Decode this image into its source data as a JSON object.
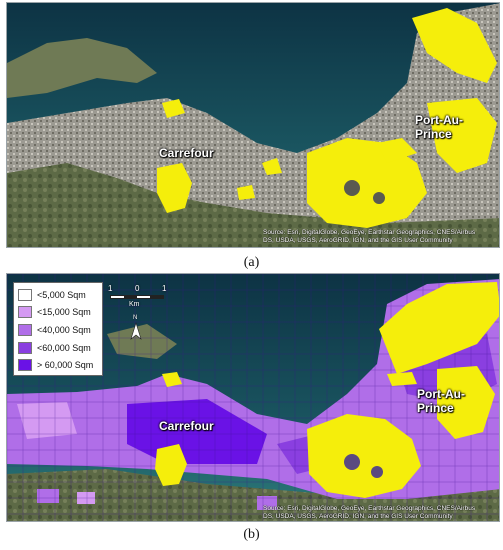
{
  "panel_a": {
    "caption": "(a)",
    "labels": {
      "city_west": "Carrefour",
      "city_east": "Port-Au-Prince"
    },
    "credit_line1": "Source: Esri, DigitalGlobe, GeoEye, Earthstar Geographics, CNES/Airbus",
    "credit_line2": "DS, USDA, USGS, AeroGRID, IGN, and the GIS User Community"
  },
  "panel_b": {
    "caption": "(b)",
    "labels": {
      "city_west": "Carrefour",
      "city_east": "Port-Au-Prince"
    },
    "credit_line1": "Source: Esri, DigitalGlobe, GeoEye, Earthstar Geographics, CNES/Airbus",
    "credit_line2": "DS, USDA, USGS, AeroGRID, IGN, and the GIS User Community",
    "legend": [
      {
        "label": "<5,000 Sqm",
        "color": "#ffffff"
      },
      {
        "label": "<15,000 Sqm",
        "color": "#d49af2"
      },
      {
        "label": "<40,000 Sqm",
        "color": "#b06ee8"
      },
      {
        "label": "<60,000 Sqm",
        "color": "#8a3fe0"
      },
      {
        "label": "> 60,000 Sqm",
        "color": "#6a12e6"
      }
    ],
    "scale_bar": {
      "left": "1",
      "middle": "0",
      "right": "1",
      "unit": "Km"
    },
    "north_label": "N"
  },
  "colors": {
    "sea_deep": "#0f3a4a",
    "sea_shallow": "#2f7f7d",
    "land": "#7b7a62",
    "hills": "#5a6445",
    "urban": "#a9a6a0",
    "building_highlight": "#f5ee0b"
  }
}
